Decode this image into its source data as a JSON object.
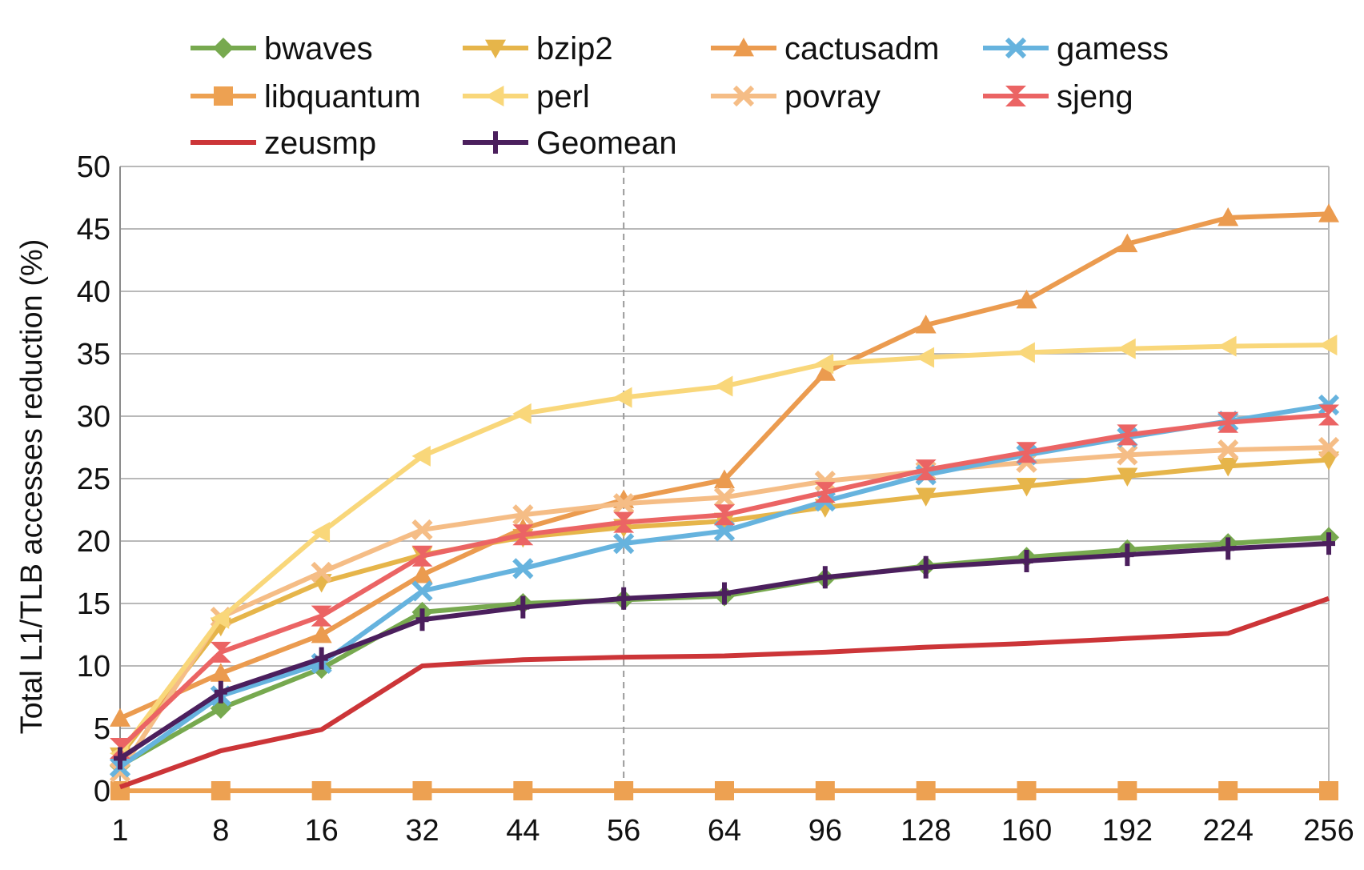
{
  "chart_data": {
    "type": "line",
    "title": "",
    "xlabel": "",
    "ylabel": "Total L1/TLB accesses reduction (%)",
    "categories": [
      "1",
      "8",
      "16",
      "32",
      "44",
      "56",
      "64",
      "96",
      "128",
      "160",
      "192",
      "224",
      "256"
    ],
    "ylim": [
      0,
      50
    ],
    "yticks": [
      0,
      5,
      10,
      15,
      20,
      25,
      30,
      35,
      40,
      45,
      50
    ],
    "grid": true,
    "legend": "top",
    "reference_line": {
      "category": "56",
      "style": "dashed"
    },
    "series": [
      {
        "name": "bwaves",
        "color": "#77a94f",
        "marker": "diamond",
        "values": [
          2.0,
          6.6,
          9.8,
          14.3,
          15.0,
          15.3,
          15.6,
          17.0,
          18.0,
          18.7,
          19.3,
          19.8,
          20.3
        ]
      },
      {
        "name": "bzip2",
        "color": "#e6b54a",
        "marker": "triangle-down",
        "values": [
          2.8,
          13.2,
          16.7,
          18.9,
          20.3,
          21.1,
          21.6,
          22.7,
          23.6,
          24.4,
          25.2,
          26.0,
          26.5
        ]
      },
      {
        "name": "cactusadm",
        "color": "#eb9b4f",
        "marker": "triangle-up",
        "values": [
          5.8,
          9.4,
          12.5,
          17.3,
          21.0,
          23.3,
          24.9,
          33.5,
          37.3,
          39.3,
          43.8,
          45.9,
          46.2
        ]
      },
      {
        "name": "gamess",
        "color": "#66b3de",
        "marker": "x",
        "values": [
          1.9,
          7.6,
          10.2,
          16.0,
          17.8,
          19.8,
          20.8,
          23.2,
          25.3,
          26.9,
          28.3,
          29.6,
          30.9
        ]
      },
      {
        "name": "libquantum",
        "color": "#eda152",
        "marker": "square",
        "values": [
          0,
          0,
          0,
          0,
          0,
          0,
          0,
          0,
          0,
          0,
          0,
          0,
          0
        ]
      },
      {
        "name": "perl",
        "color": "#f9d77a",
        "marker": "triangle-left",
        "values": [
          3.0,
          13.8,
          20.7,
          26.8,
          30.2,
          31.5,
          32.4,
          34.2,
          34.7,
          35.1,
          35.4,
          35.6,
          35.7
        ]
      },
      {
        "name": "povray",
        "color": "#f5bd86",
        "marker": "x",
        "values": [
          1.5,
          13.9,
          17.5,
          20.9,
          22.1,
          23.0,
          23.5,
          24.8,
          25.6,
          26.3,
          26.9,
          27.3,
          27.5
        ]
      },
      {
        "name": "sjeng",
        "color": "#eb6464",
        "marker": "hourglass",
        "values": [
          3.4,
          11.1,
          14.0,
          18.8,
          20.5,
          21.5,
          22.1,
          23.9,
          25.7,
          27.1,
          28.5,
          29.5,
          30.1
        ]
      },
      {
        "name": "zeusmp",
        "color": "#cc3538",
        "marker": "none",
        "values": [
          0.3,
          3.2,
          4.9,
          10.0,
          10.5,
          10.7,
          10.8,
          11.1,
          11.5,
          11.8,
          12.2,
          12.6,
          15.4
        ]
      },
      {
        "name": "Geomean",
        "color": "#4b1f5d",
        "marker": "plus",
        "values": [
          2.6,
          7.9,
          10.6,
          13.7,
          14.7,
          15.4,
          15.8,
          17.1,
          17.9,
          18.4,
          18.9,
          19.4,
          19.8
        ]
      }
    ]
  }
}
